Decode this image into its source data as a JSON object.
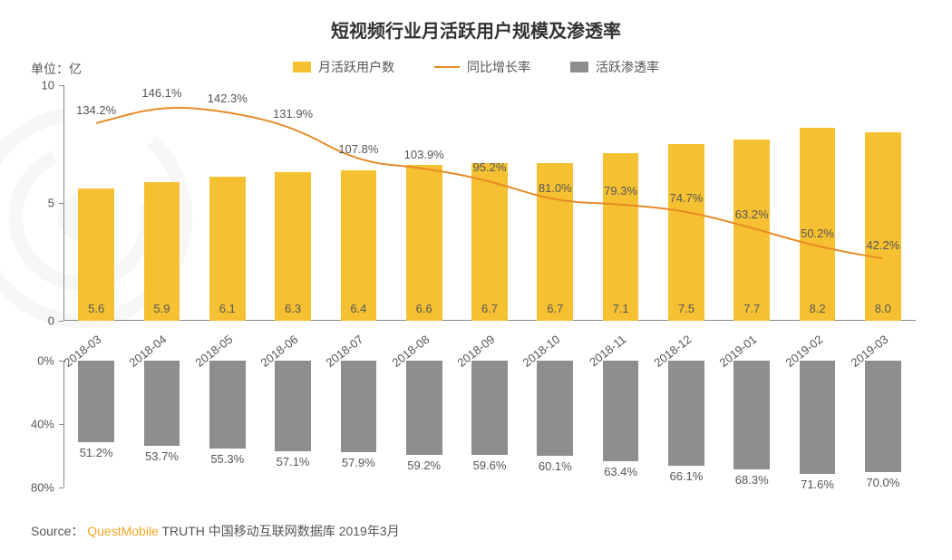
{
  "title": "短视频行业月活跃用户规模及渗透率",
  "title_fontsize": 20,
  "unit_label": "单位：亿",
  "unit_fontsize": 14,
  "legend": {
    "mau": "月活跃用户数",
    "growth": "同比增长率",
    "penetration": "活跃渗透率",
    "fontsize": 14
  },
  "colors": {
    "mau_bar": "#f5c132",
    "growth_line": "#e78a27",
    "penetration_bar": "#8e8e8e",
    "axis": "#888888",
    "text": "#555555",
    "background": "#ffffff",
    "source_brand": "#f5a623"
  },
  "top_chart": {
    "type": "bar+line",
    "categories": [
      "2018-03",
      "2018-04",
      "2018-05",
      "2018-06",
      "2018-07",
      "2018-08",
      "2018-09",
      "2018-10",
      "2018-11",
      "2018-12",
      "2019-01",
      "2019-02",
      "2019-03"
    ],
    "mau_values": [
      5.6,
      5.9,
      6.1,
      6.3,
      6.4,
      6.6,
      6.7,
      6.7,
      7.1,
      7.5,
      7.7,
      8.2,
      8.0
    ],
    "growth_values_pct": [
      134.2,
      146.1,
      142.3,
      131.9,
      107.8,
      103.9,
      95.2,
      81.0,
      79.3,
      74.7,
      63.2,
      50.2,
      42.2
    ],
    "growth_labels": [
      "134.2%",
      "146.1%",
      "142.3%",
      "131.9%",
      "107.8%",
      "103.9%",
      "95.2%",
      "81.0%",
      "79.3%",
      "74.7%",
      "63.2%",
      "50.2%",
      "42.2%"
    ],
    "growth_max_pct": 160,
    "ylim": [
      0,
      10
    ],
    "yticks": [
      0,
      5,
      10
    ],
    "bar_width_ratio": 0.55,
    "label_fontsize": 13,
    "xlabel_fontsize": 13,
    "line_width": 2
  },
  "bottom_chart": {
    "type": "bar",
    "categories": [
      "2018-03",
      "2018-04",
      "2018-05",
      "2018-06",
      "2018-07",
      "2018-08",
      "2018-09",
      "2018-10",
      "2018-11",
      "2018-12",
      "2019-01",
      "2019-02",
      "2019-03"
    ],
    "penetration_values_pct": [
      51.2,
      53.7,
      55.3,
      57.1,
      57.9,
      59.2,
      59.6,
      60.1,
      63.4,
      66.1,
      68.3,
      71.6,
      70.0
    ],
    "penetration_labels": [
      "51.2%",
      "53.7%",
      "55.3%",
      "57.1%",
      "57.9%",
      "59.2%",
      "59.6%",
      "60.1%",
      "63.4%",
      "66.1%",
      "68.3%",
      "71.6%",
      "70.0%"
    ],
    "ylim": [
      0,
      80
    ],
    "yticks": [
      0,
      40,
      80
    ],
    "ytick_labels": [
      "0%",
      "40%",
      "80%"
    ],
    "bar_width_ratio": 0.55,
    "label_fontsize": 13
  },
  "source": {
    "prefix": "Source：",
    "brand": "QuestMobile",
    "rest": "TRUTH 中国移动互联网数据库 2019年3月",
    "fontsize": 14
  }
}
